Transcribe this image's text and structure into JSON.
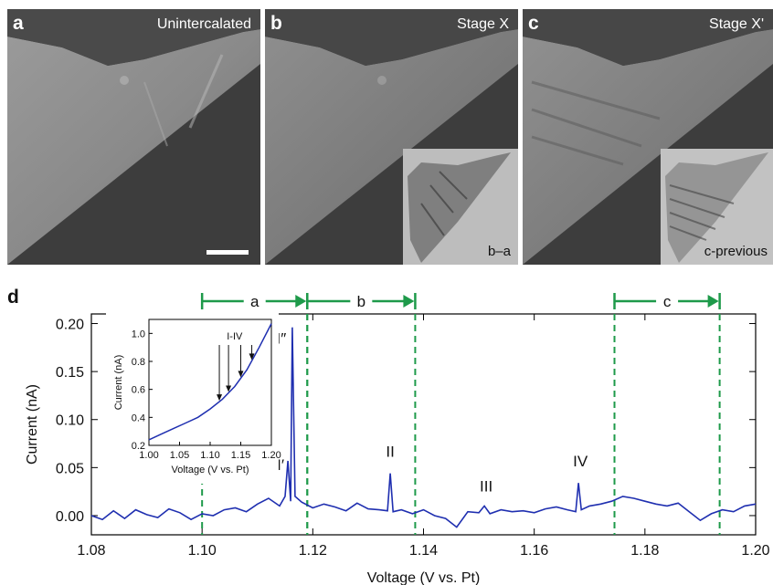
{
  "panels": [
    {
      "letter": "a",
      "title": "Unintercalated"
    },
    {
      "letter": "b",
      "title": "Stage X",
      "inset_label": "b–a"
    },
    {
      "letter": "c",
      "title": "Stage X'",
      "inset_label": "c-previous"
    }
  ],
  "colors": {
    "trace": "#1f2fb0",
    "windows": "#1e9a4a",
    "axis": "#000000"
  },
  "chart_data": [
    {
      "type": "line",
      "panel": "d",
      "xlabel": "Voltage (V vs. Pt)",
      "ylabel": "Current (nA)",
      "xlim": [
        1.08,
        1.2
      ],
      "ylim": [
        -0.02,
        0.21
      ],
      "xticks": [
        "1.08",
        "1.10",
        "1.12",
        "1.14",
        "1.16",
        "1.18",
        "1.20"
      ],
      "yticks": [
        "0.00",
        "0.05",
        "0.10",
        "0.15",
        "0.20"
      ],
      "windows": [
        {
          "label": "a",
          "start": 1.1,
          "end": 1.119
        },
        {
          "label": "b",
          "start": 1.119,
          "end": 1.1385
        },
        {
          "label": "c",
          "start": 1.1745,
          "end": 1.1935
        }
      ],
      "peaks": [
        {
          "label": "I′",
          "x": 1.1155,
          "y": 0.057
        },
        {
          "label": "I″",
          "x": 1.1163,
          "y": 0.196
        },
        {
          "label": "II",
          "x": 1.134,
          "y": 0.044
        },
        {
          "label": "III",
          "x": 1.151,
          "y": 0.01
        },
        {
          "label": "IV",
          "x": 1.168,
          "y": 0.034
        }
      ],
      "series": [
        {
          "x": [
            1.08,
            1.082,
            1.084,
            1.086,
            1.088,
            1.09,
            1.092,
            1.094,
            1.096,
            1.098,
            1.1,
            1.102,
            1.104,
            1.106,
            1.108,
            1.11,
            1.112,
            1.114,
            1.115,
            1.1155,
            1.116,
            1.1163,
            1.1168,
            1.118,
            1.12,
            1.122,
            1.124,
            1.126,
            1.128,
            1.13,
            1.132,
            1.1335,
            1.134,
            1.1345,
            1.136,
            1.138,
            1.14,
            1.142,
            1.144,
            1.146,
            1.148,
            1.15,
            1.151,
            1.152,
            1.154,
            1.156,
            1.158,
            1.16,
            1.162,
            1.164,
            1.166,
            1.1675,
            1.168,
            1.1685,
            1.17,
            1.172,
            1.174,
            1.176,
            1.178,
            1.18,
            1.182,
            1.184,
            1.186,
            1.188,
            1.19,
            1.192,
            1.194,
            1.196,
            1.198,
            1.2
          ],
          "y": [
            0.0,
            -0.004,
            0.005,
            -0.003,
            0.006,
            0.001,
            -0.002,
            0.007,
            0.003,
            -0.004,
            0.002,
            0.0,
            0.006,
            0.008,
            0.004,
            0.012,
            0.018,
            0.01,
            0.02,
            0.057,
            0.015,
            0.196,
            0.02,
            0.014,
            0.008,
            0.012,
            0.009,
            0.005,
            0.013,
            0.007,
            0.006,
            0.005,
            0.044,
            0.004,
            0.006,
            0.002,
            0.006,
            0.0,
            -0.003,
            -0.012,
            0.004,
            0.003,
            0.01,
            0.002,
            0.006,
            0.004,
            0.005,
            0.003,
            0.007,
            0.009,
            0.006,
            0.004,
            0.034,
            0.006,
            0.01,
            0.012,
            0.015,
            0.02,
            0.018,
            0.015,
            0.012,
            0.01,
            0.013,
            0.004,
            -0.005,
            0.002,
            0.006,
            0.004,
            0.01,
            0.012
          ]
        }
      ]
    },
    {
      "type": "line",
      "panel": "d-inset",
      "text_label": "I-IV",
      "xlabel": "Voltage (V vs. Pt)",
      "ylabel": "Current (nA)",
      "xlim": [
        1.0,
        1.2
      ],
      "ylim": [
        0.2,
        1.1
      ],
      "xticks": [
        "1.00",
        "1.05",
        "1.10",
        "1.15",
        "1.20"
      ],
      "yticks": [
        "0.2",
        "0.4",
        "0.6",
        "0.8",
        "1.0"
      ],
      "arrows_x": [
        1.115,
        1.13,
        1.15,
        1.168
      ],
      "series": [
        {
          "x": [
            1.0,
            1.02,
            1.04,
            1.06,
            1.08,
            1.1,
            1.12,
            1.14,
            1.16,
            1.18,
            1.2
          ],
          "y": [
            0.24,
            0.28,
            0.32,
            0.36,
            0.4,
            0.46,
            0.53,
            0.62,
            0.74,
            0.9,
            1.07
          ]
        }
      ]
    }
  ]
}
